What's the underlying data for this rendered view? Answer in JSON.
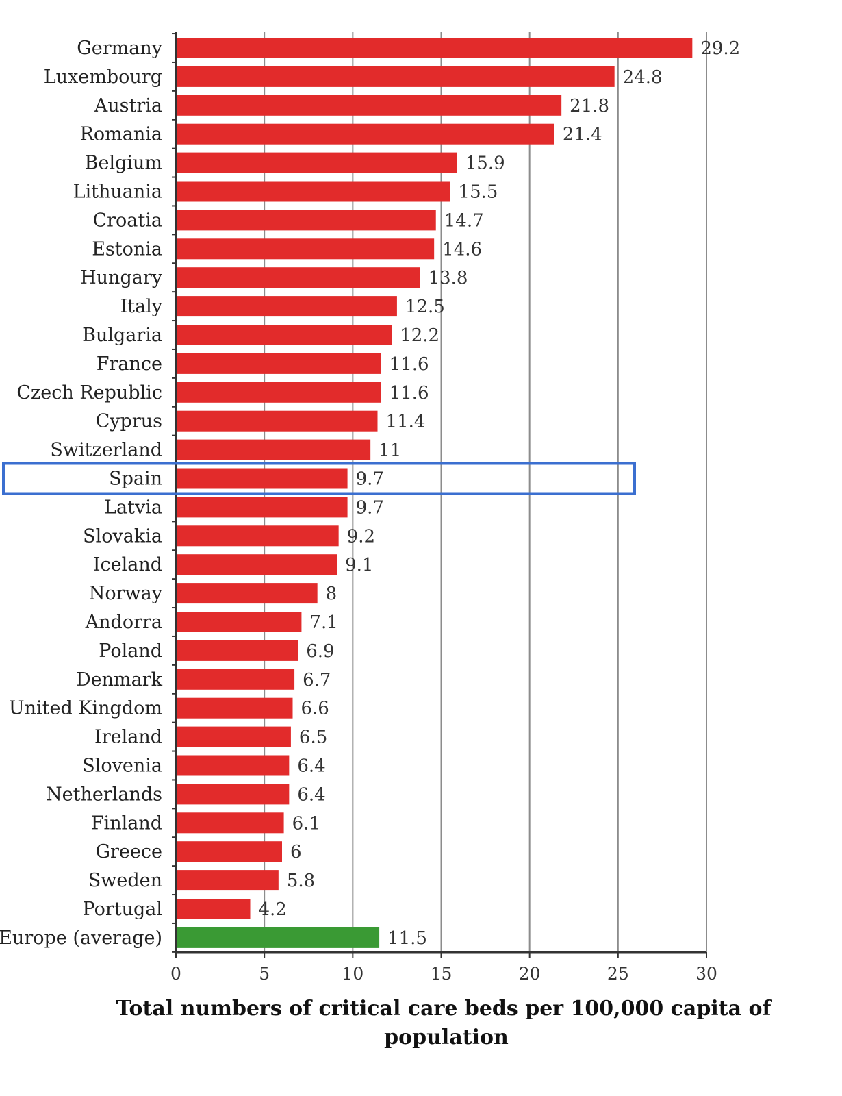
{
  "chart_data": {
    "type": "bar",
    "orientation": "horizontal",
    "categories": [
      "Germany",
      "Luxembourg",
      "Austria",
      "Romania",
      "Belgium",
      "Lithuania",
      "Croatia",
      "Estonia",
      "Hungary",
      "Italy",
      "Bulgaria",
      "France",
      "Czech Republic",
      "Cyprus",
      "Switzerland",
      "Spain",
      "Latvia",
      "Slovakia",
      "Iceland",
      "Norway",
      "Andorra",
      "Poland",
      "Denmark",
      "United Kingdom",
      "Ireland",
      "Slovenia",
      "Netherlands",
      "Finland",
      "Greece",
      "Sweden",
      "Portugal",
      "Europe (average)"
    ],
    "values": [
      29.2,
      24.8,
      21.8,
      21.4,
      15.9,
      15.5,
      14.7,
      14.6,
      13.8,
      12.5,
      12.2,
      11.6,
      11.6,
      11.4,
      11,
      9.7,
      9.7,
      9.2,
      9.1,
      8,
      7.1,
      6.9,
      6.7,
      6.6,
      6.5,
      6.4,
      6.4,
      6.1,
      6,
      5.8,
      4.2,
      11.5
    ],
    "value_labels": [
      "29.2",
      "24.8",
      "21.8",
      "21.4",
      "15.9",
      "15.5",
      "14.7",
      "14.6",
      "13.8",
      "12.5",
      "12.2",
      "11.6",
      "11.6",
      "11.4",
      "11",
      "9.7",
      "9.7",
      "9.2",
      "9.1",
      "8",
      "7.1",
      "6.9",
      "6.7",
      "6.6",
      "6.5",
      "6.4",
      "6.4",
      "6.1",
      "6",
      "5.8",
      "4.2",
      "11.5"
    ],
    "xlabel_line1": "Total numbers of critical care beds per 100,000 capita of",
    "xlabel_line2": "population",
    "xlim": [
      0,
      30
    ],
    "xticks": [
      0,
      5,
      10,
      15,
      20,
      25,
      30
    ],
    "grid": "vertical",
    "highlighted_category": "Spain",
    "colors": {
      "bar": "#e22b2b",
      "average_bar": "#3a9a34",
      "highlight_box": "#3b6fd0",
      "grid": "#8c8c8c"
    }
  }
}
